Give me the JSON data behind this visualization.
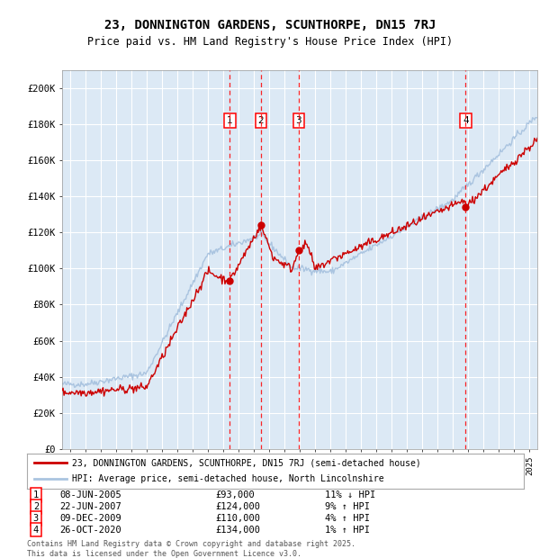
{
  "title": "23, DONNINGTON GARDENS, SCUNTHORPE, DN15 7RJ",
  "subtitle": "Price paid vs. HM Land Registry's House Price Index (HPI)",
  "plot_bg_color": "#dce9f5",
  "grid_color": "#ffffff",
  "sale_color": "#cc0000",
  "hpi_color": "#aac4e0",
  "legend_sale_label": "23, DONNINGTON GARDENS, SCUNTHORPE, DN15 7RJ (semi-detached house)",
  "legend_hpi_label": "HPI: Average price, semi-detached house, North Lincolnshire",
  "yticks": [
    0,
    20000,
    40000,
    60000,
    80000,
    100000,
    120000,
    140000,
    160000,
    180000,
    200000
  ],
  "ytick_labels": [
    "£0",
    "£20K",
    "£40K",
    "£60K",
    "£80K",
    "£100K",
    "£120K",
    "£140K",
    "£160K",
    "£180K",
    "£200K"
  ],
  "xmin": 1994.5,
  "xmax": 2025.5,
  "ymin": 0,
  "ymax": 210000,
  "sale_dates": [
    2005.44,
    2007.47,
    2009.93,
    2020.82
  ],
  "sale_prices": [
    93000,
    124000,
    110000,
    134000
  ],
  "sale_labels": [
    "1",
    "2",
    "3",
    "4"
  ],
  "transactions": [
    {
      "num": "1",
      "date": "08-JUN-2005",
      "price": "£93,000",
      "note": "11% ↓ HPI"
    },
    {
      "num": "2",
      "date": "22-JUN-2007",
      "price": "£124,000",
      "note": "9% ↑ HPI"
    },
    {
      "num": "3",
      "date": "09-DEC-2009",
      "price": "£110,000",
      "note": "4% ↑ HPI"
    },
    {
      "num": "4",
      "date": "26-OCT-2020",
      "price": "£134,000",
      "note": "1% ↑ HPI"
    }
  ],
  "footer": "Contains HM Land Registry data © Crown copyright and database right 2025.\nThis data is licensed under the Open Government Licence v3.0."
}
